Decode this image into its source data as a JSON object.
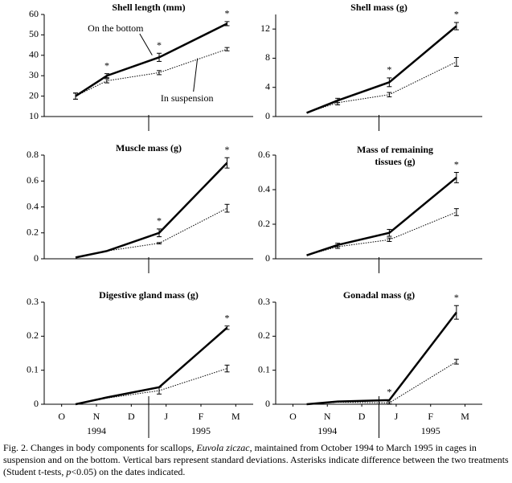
{
  "chart_data": [
    {
      "type": "line",
      "title": "Shell length (mm)",
      "x": [
        0.4,
        1.3,
        2.8,
        4.75
      ],
      "xlim": [
        -0.5,
        5.5
      ],
      "ylim": [
        10,
        60
      ],
      "yticks": [
        10,
        20,
        30,
        40,
        50,
        60
      ],
      "series": [
        {
          "name": "On the bottom",
          "color": "#000000",
          "style": "solid",
          "values": [
            20,
            30,
            39,
            55.5
          ],
          "errors": [
            1.5,
            1,
            2,
            1
          ]
        },
        {
          "name": "In suspension",
          "color": "#000000",
          "style": "dotted",
          "values": [
            20,
            27.5,
            31.5,
            43
          ],
          "errors": [
            1.5,
            1,
            1,
            0.8
          ]
        }
      ],
      "asterisk_points": [
        1,
        2,
        3
      ]
    },
    {
      "type": "line",
      "title": "Shell mass (g)",
      "x": [
        0.4,
        1.3,
        2.8,
        4.75
      ],
      "xlim": [
        -0.5,
        5.5
      ],
      "ylim": [
        0,
        14
      ],
      "yticks": [
        0,
        4,
        8,
        12
      ],
      "series": [
        {
          "color": "#000000",
          "style": "solid",
          "values": [
            0.5,
            2.2,
            4.7,
            12.4
          ],
          "errors": [
            null,
            0.3,
            0.6,
            0.5
          ]
        },
        {
          "color": "#000000",
          "style": "dotted",
          "values": [
            0.5,
            1.9,
            3.0,
            7.5
          ],
          "errors": [
            null,
            0.3,
            0.3,
            0.6
          ]
        }
      ],
      "asterisk_points": [
        2,
        3
      ]
    },
    {
      "type": "line",
      "title": "Muscle mass (g)",
      "x": [
        0.4,
        1.3,
        2.8,
        4.75
      ],
      "xlim": [
        -0.5,
        5.5
      ],
      "ylim": [
        0,
        0.8
      ],
      "yticks": [
        0,
        0.2,
        0.4,
        0.6,
        0.8
      ],
      "series": [
        {
          "color": "#000000",
          "style": "solid",
          "values": [
            0.01,
            0.06,
            0.2,
            0.74
          ],
          "errors": [
            null,
            null,
            0.03,
            0.04
          ]
        },
        {
          "color": "#000000",
          "style": "dotted",
          "values": [
            0.01,
            0.06,
            0.12,
            0.39
          ],
          "errors": [
            null,
            null,
            0.005,
            0.03
          ]
        }
      ],
      "asterisk_points": [
        2,
        3
      ]
    },
    {
      "type": "line",
      "title": [
        "Mass of remaining",
        "tissues (g)"
      ],
      "x": [
        0.4,
        1.3,
        2.8,
        4.75
      ],
      "xlim": [
        -0.5,
        5.5
      ],
      "ylim": [
        0,
        0.6
      ],
      "yticks": [
        0,
        0.2,
        0.4,
        0.6
      ],
      "series": [
        {
          "color": "#000000",
          "style": "solid",
          "values": [
            0.02,
            0.08,
            0.15,
            0.47
          ],
          "errors": [
            null,
            0.01,
            0.02,
            0.03
          ]
        },
        {
          "color": "#000000",
          "style": "dotted",
          "values": [
            0.02,
            0.07,
            0.11,
            0.27
          ],
          "errors": [
            null,
            0.01,
            0.01,
            0.02
          ]
        }
      ],
      "asterisk_points": [
        3
      ]
    },
    {
      "type": "line",
      "title": "Digestive gland mass (g)",
      "x": [
        0.4,
        1.3,
        2.8,
        4.75
      ],
      "xlim": [
        -0.5,
        5.5
      ],
      "ylim": [
        0,
        0.3
      ],
      "yticks": [
        0,
        0.1,
        0.2,
        0.3
      ],
      "xticks": [
        {
          "value": 0,
          "label": "O"
        },
        {
          "value": 1,
          "label": "N"
        },
        {
          "value": 2,
          "label": "D"
        },
        {
          "value": 3,
          "label": "J"
        },
        {
          "value": 4,
          "label": "F"
        },
        {
          "value": 5,
          "label": "M"
        }
      ],
      "x_group_labels": [
        "1994",
        "1995"
      ],
      "series": [
        {
          "color": "#000000",
          "style": "solid",
          "values": [
            0.0,
            0.02,
            0.05,
            0.225
          ],
          "errors": [
            null,
            null,
            null,
            0.005
          ]
        },
        {
          "color": "#000000",
          "style": "dotted",
          "values": [
            0.0,
            0.018,
            0.04,
            0.105
          ],
          "errors": [
            null,
            null,
            0.01,
            0.01
          ]
        }
      ],
      "asterisk_points": [
        3
      ]
    },
    {
      "type": "line",
      "title": "Gonadal mass (g)",
      "x": [
        0.4,
        1.3,
        2.8,
        4.75
      ],
      "xlim": [
        -0.5,
        5.5
      ],
      "ylim": [
        0,
        0.3
      ],
      "yticks": [
        0,
        0.1,
        0.2,
        0.3
      ],
      "xticks": [
        {
          "value": 0,
          "label": "O"
        },
        {
          "value": 1,
          "label": "N"
        },
        {
          "value": 2,
          "label": "D"
        },
        {
          "value": 3,
          "label": "J"
        },
        {
          "value": 4,
          "label": "F"
        },
        {
          "value": 5,
          "label": "M"
        }
      ],
      "x_group_labels": [
        "1994",
        "1995"
      ],
      "series": [
        {
          "color": "#000000",
          "style": "solid",
          "values": [
            0,
            0.008,
            0.012,
            0.27
          ],
          "errors": [
            null,
            null,
            null,
            0.02
          ]
        },
        {
          "color": "#000000",
          "style": "dotted",
          "values": [
            0,
            0.006,
            0.004,
            0.125
          ],
          "errors": [
            null,
            null,
            0.003,
            0.007
          ]
        }
      ],
      "asterisk_points": [
        2,
        3
      ]
    }
  ],
  "asterisk": "*",
  "caption": [
    "Fig. 2. Changes in body components for scallops, ",
    "Euvola ziczac",
    ", maintained from October 1994 to March 1995 in cages in suspension and on the bottom. Vertical bars represent standard deviations. Asterisks indicate difference between the two treatments (Student t-tests, ",
    "p",
    "<0.05) on the dates indicated."
  ]
}
